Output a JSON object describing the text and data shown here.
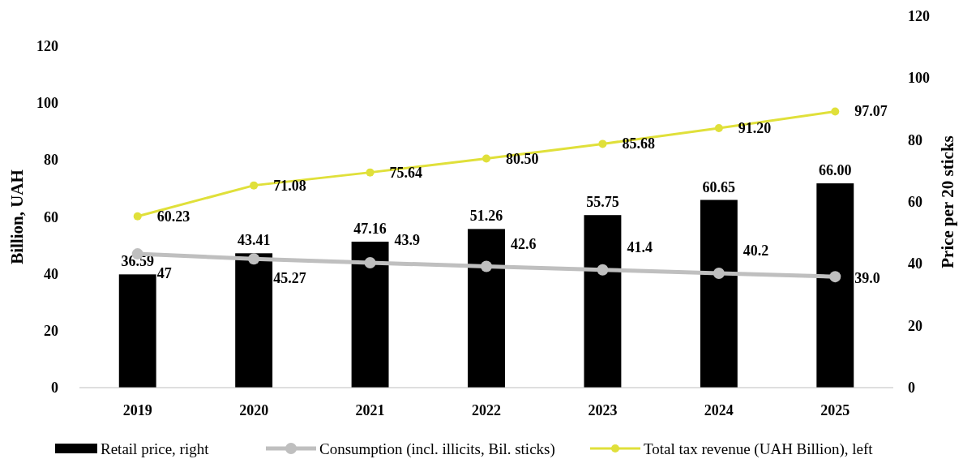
{
  "chart_data": {
    "type": "bar",
    "categories": [
      "2019",
      "2020",
      "2021",
      "2022",
      "2023",
      "2024",
      "2025"
    ],
    "ylabel": "Billion, UAH",
    "y2label": "Price per 20 sticks",
    "ylim": [
      0,
      120
    ],
    "yticks": [
      0,
      20,
      40,
      60,
      80,
      100,
      120
    ],
    "y2lim": [
      0,
      120
    ],
    "y2ticks": [
      0,
      20,
      40,
      60,
      80,
      100,
      120
    ],
    "legend": "bottom",
    "grid": false,
    "marker": "circle",
    "series": [
      {
        "name": "Retail price, right",
        "axis": "y2",
        "color": "#000000",
        "values": [
          36.59,
          43.41,
          47.16,
          51.26,
          55.75,
          60.65,
          66.0
        ],
        "value_labels": [
          "36.59",
          "43.41",
          "47.16",
          "51.26",
          "55.75",
          "60.65",
          "66.00"
        ]
      },
      {
        "name": "Consumption (incl. illicits, Bil. sticks)",
        "type": "line",
        "axis": "y",
        "color": "#bfbfbf",
        "values": [
          47,
          45.27,
          43.9,
          42.6,
          41.4,
          40.2,
          39.0
        ],
        "value_labels": [
          "47",
          "45.27",
          "43.9",
          "42.6",
          "41.4",
          "40.2",
          "39.0"
        ]
      },
      {
        "name": "Total tax revenue (UAH Billion), left",
        "type": "line",
        "axis": "y",
        "color": "#e0e03a",
        "values": [
          60.23,
          71.08,
          75.64,
          80.5,
          85.68,
          91.2,
          97.07
        ],
        "value_labels": [
          "60.23",
          "71.08",
          "75.64",
          "80.50",
          "85.68",
          "91.20",
          "97.07"
        ]
      }
    ]
  }
}
